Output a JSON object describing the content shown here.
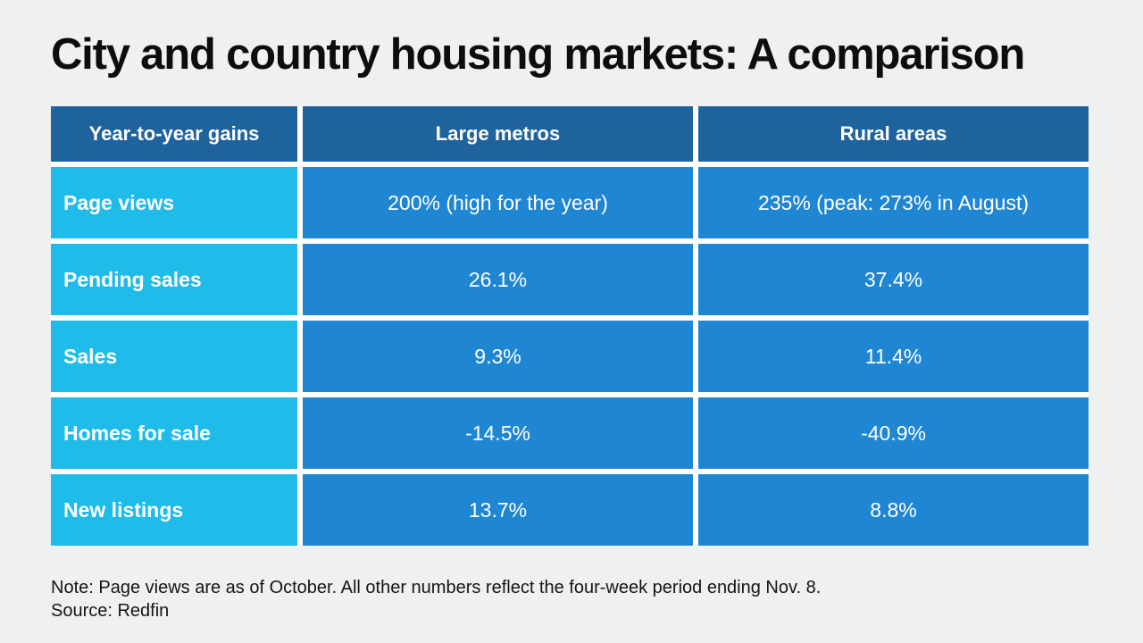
{
  "header": {
    "title": "City and country housing markets: A comparison"
  },
  "chart_data": {
    "type": "table",
    "title": "City and country housing markets: A comparison",
    "columns": [
      "Year-to-year gains",
      "Large metros",
      "Rural areas"
    ],
    "rows": [
      {
        "label": "Page views",
        "values": [
          "200% (high for the year)",
          "235% (peak: 273% in August)"
        ]
      },
      {
        "label": "Pending sales",
        "values": [
          "26.1%",
          "37.4%"
        ]
      },
      {
        "label": "Sales",
        "values": [
          "9.3%",
          "11.4%"
        ]
      },
      {
        "label": "Homes for sale",
        "values": [
          "-14.5%",
          "-40.9%"
        ]
      },
      {
        "label": "New listings",
        "values": [
          "13.7%",
          "8.8%"
        ]
      }
    ],
    "layout": {
      "legend": false,
      "grid": false,
      "header_position": "top-row"
    }
  },
  "footer": {
    "note": "Note: Page views are as of October. All other numbers reflect the four-week period ending Nov. 8.",
    "source": "Source: Redfin"
  },
  "colors": {
    "page_bg": "#eff1f0",
    "header_cell": "#1e639c",
    "label_cell": "#1fbbe9",
    "value_cell": "#1e86d2",
    "cell_gap": "#ffffff",
    "cell_text": "#ffffff",
    "title_text": "#0d0d0d",
    "note_text": "#141414"
  }
}
